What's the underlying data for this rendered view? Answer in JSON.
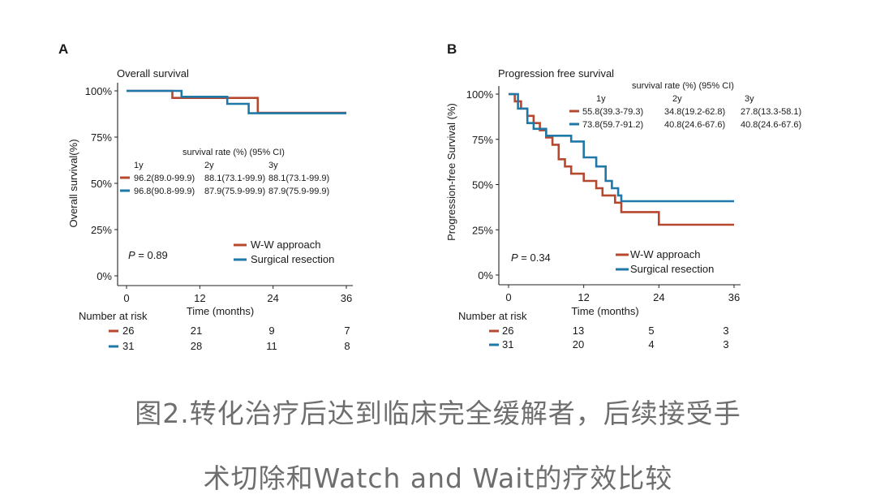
{
  "chart_data": [
    {
      "panel": "A",
      "type": "line",
      "subtype": "kaplan-meier",
      "title": "Overall survival",
      "xlabel": "Time (months)",
      "ylabel": "Overall survival(%)",
      "xlim": [
        0,
        36
      ],
      "ylim": [
        0,
        100
      ],
      "xticks": [
        0,
        12,
        24,
        36
      ],
      "yticks": [
        0,
        25,
        50,
        75,
        100
      ],
      "ytick_labels": [
        "0%",
        "25%",
        "50%",
        "75%",
        "100%"
      ],
      "series": [
        {
          "name": "W-W approach",
          "color": "#b5482e",
          "x": [
            0,
            7.5,
            7.5,
            21.5,
            21.5,
            36
          ],
          "y": [
            100,
            100,
            96.2,
            96.2,
            88.1,
            88.1
          ]
        },
        {
          "name": "Surgical resection",
          "color": "#1f79a8",
          "x": [
            0,
            9,
            9,
            16.5,
            16.5,
            20,
            20,
            36
          ],
          "y": [
            100,
            100,
            96.8,
            96.8,
            93,
            93,
            87.9,
            87.9
          ]
        }
      ],
      "rate_table": {
        "header": "survival rate (%) (95% CI)",
        "columns": [
          "1y",
          "2y",
          "3y"
        ],
        "rows": [
          [
            "96.2(89.0-99.9)",
            "88.1(73.1-99.9)",
            "88.1(73.1-99.9)"
          ],
          [
            "96.8(90.8-99.9)",
            "87.9(75.9-99.9)",
            "87.9(75.9-99.9)"
          ]
        ]
      },
      "p_label": "P",
      "p_value": " = 0.89",
      "legend": [
        "W-W approach",
        "Surgical resection"
      ],
      "risk": {
        "title": "Number at risk",
        "rows": [
          [
            "26",
            "21",
            "9",
            "7"
          ],
          [
            "31",
            "28",
            "11",
            "8"
          ]
        ]
      }
    },
    {
      "panel": "B",
      "type": "line",
      "subtype": "kaplan-meier",
      "title": "Progression free survival",
      "xlabel": "Time (months)",
      "ylabel": "Progression-free Survival (%)",
      "xlim": [
        0,
        36
      ],
      "ylim": [
        0,
        100
      ],
      "xticks": [
        0,
        12,
        24,
        36
      ],
      "yticks": [
        0,
        25,
        50,
        75,
        100
      ],
      "ytick_labels": [
        "0%",
        "25%",
        "50%",
        "75%",
        "100%"
      ],
      "series": [
        {
          "name": "W-W approach",
          "color": "#b5482e",
          "x": [
            0,
            1,
            1,
            2,
            2,
            3,
            3,
            4,
            4,
            5,
            5,
            6,
            6,
            7,
            7,
            8,
            8,
            9,
            9,
            10,
            10,
            12,
            12,
            14,
            14,
            15,
            15,
            17,
            17,
            18,
            18,
            24,
            24,
            36
          ],
          "y": [
            100,
            100,
            96,
            96,
            92,
            92,
            88,
            88,
            84,
            84,
            80,
            80,
            76,
            76,
            72,
            72,
            64,
            64,
            60,
            60,
            56,
            56,
            52,
            52,
            48,
            48,
            44,
            44,
            40,
            40,
            34.8,
            34.8,
            27.8,
            27.8
          ]
        },
        {
          "name": "Surgical resection",
          "color": "#1f79a8",
          "x": [
            0,
            1.5,
            1.5,
            3,
            3,
            4,
            4,
            6,
            6,
            10,
            10,
            12,
            12,
            14,
            14,
            15.5,
            15.5,
            16.5,
            16.5,
            17.5,
            17.5,
            18,
            18,
            36
          ],
          "y": [
            100,
            100,
            92,
            92,
            84,
            84,
            80.8,
            80.8,
            77,
            77,
            73.8,
            73.8,
            65,
            65,
            60,
            60,
            52,
            52,
            48,
            48,
            44,
            44,
            40.8,
            40.8
          ]
        }
      ],
      "rate_table": {
        "header": "survival rate (%) (95% CI)",
        "columns": [
          "1y",
          "2y",
          "3y"
        ],
        "rows": [
          [
            "55.8(39.3-79.3)",
            "34.8(19.2-62.8)",
            "27.8(13.3-58.1)"
          ],
          [
            "73.8(59.7-91.2)",
            "40.8(24.6-67.6)",
            "40.8(24.6-67.6)"
          ]
        ]
      },
      "p_label": "P",
      "p_value": " = 0.34",
      "legend": [
        "W-W approach",
        "Surgical resection"
      ],
      "risk": {
        "title": "Number at risk",
        "rows": [
          [
            "26",
            "13",
            "5",
            "3"
          ],
          [
            "31",
            "20",
            "4",
            "3"
          ]
        ]
      }
    }
  ],
  "caption": {
    "line1": "图2.转化治疗后达到临床完全缓解者，后续接受手",
    "line2": "术切除和Watch and Wait的疗效比较"
  }
}
